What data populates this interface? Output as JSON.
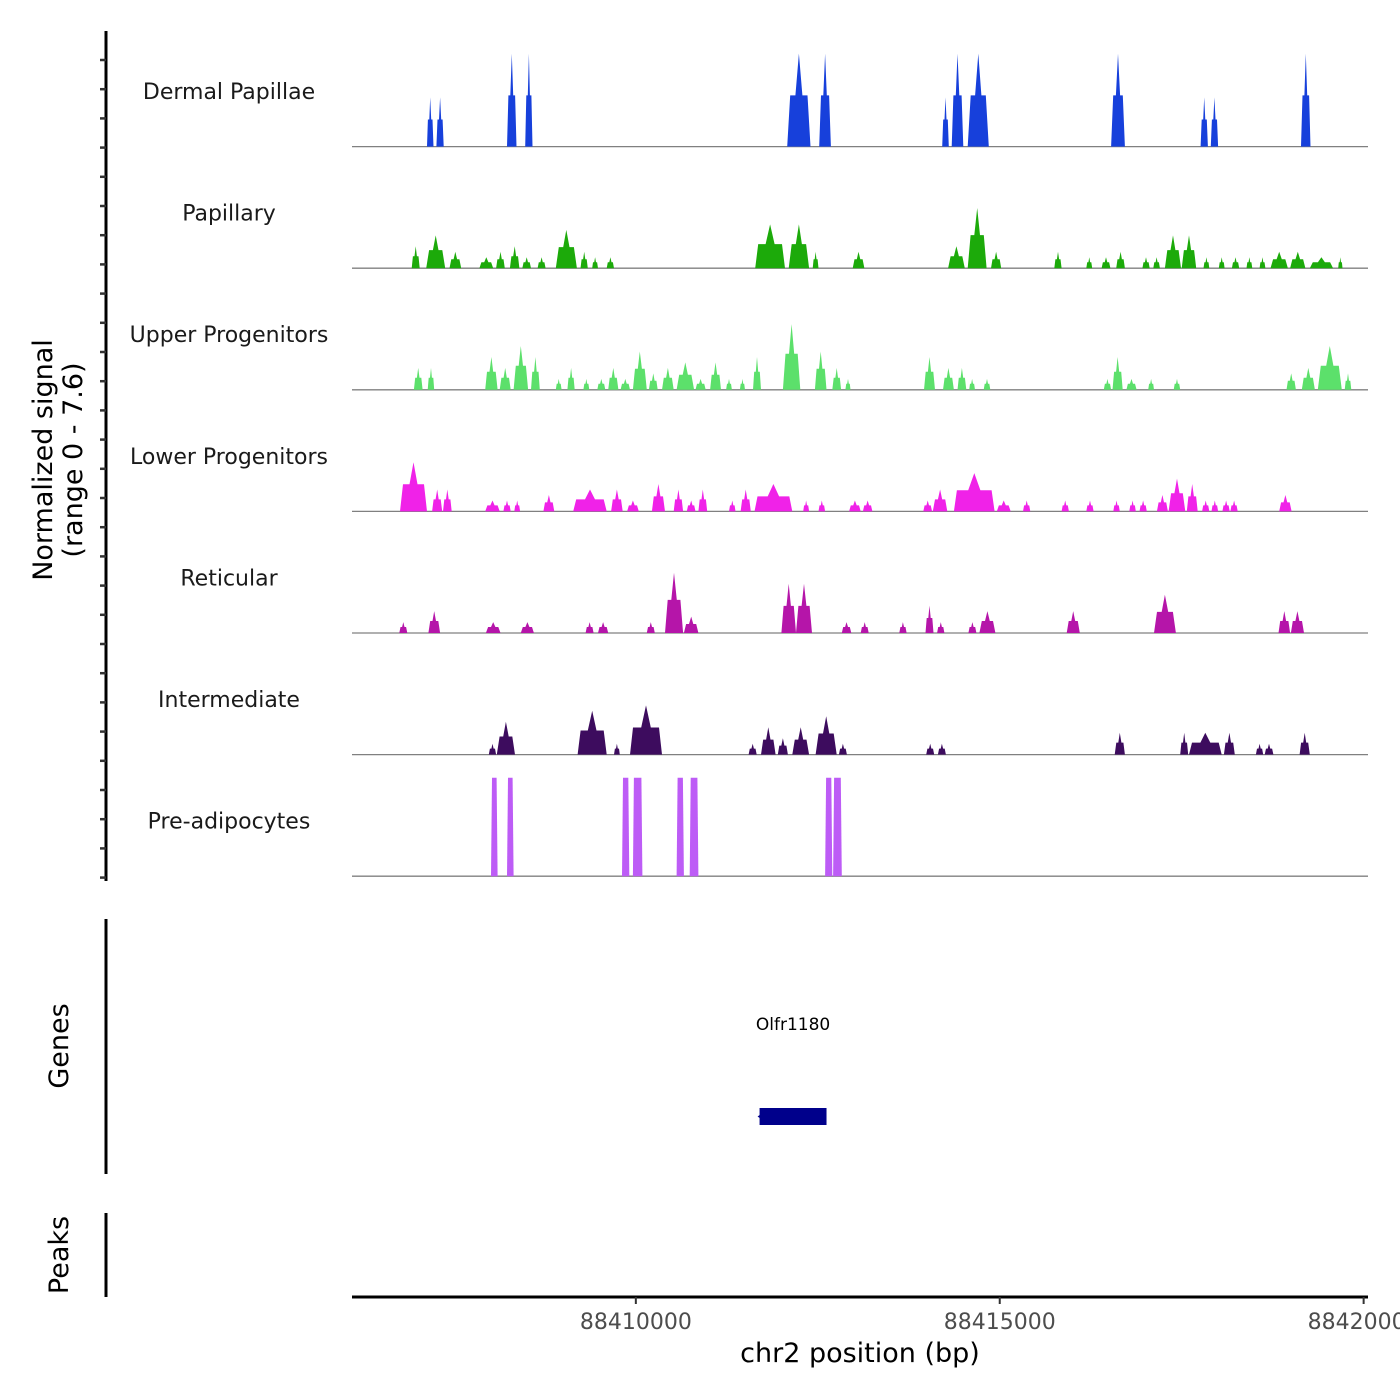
{
  "chart_data": {
    "type": "area",
    "title": "",
    "xlabel": "chr2 position (bp)",
    "ylabel": "Normalized signal\n(range 0 - 7.6)",
    "ylabel_lines": [
      "Normalized signal",
      "(range 0 - 7.6)"
    ],
    "ylim": [
      0,
      7.6
    ],
    "xlim": [
      88406100,
      88420060
    ],
    "x_ticks": [
      88410000,
      88415000,
      88420000
    ],
    "x_tick_labels": [
      "88410000",
      "88415000",
      "88420000"
    ],
    "grid": false,
    "legend": "none",
    "series": [
      {
        "name": "Dermal Papillae",
        "color": "#1740DB",
        "peaks": [
          [
            88407130,
            88407220,
            0.45
          ],
          [
            88407260,
            88407360,
            0.45
          ],
          [
            88408230,
            88408360,
            0.85
          ],
          [
            88408480,
            88408580,
            0.85
          ],
          [
            88412080,
            88412400,
            0.85
          ],
          [
            88412520,
            88412680,
            0.85
          ],
          [
            88414210,
            88414300,
            0.45
          ],
          [
            88414340,
            88414500,
            0.85
          ],
          [
            88414560,
            88414850,
            0.85
          ],
          [
            88416530,
            88416720,
            0.85
          ],
          [
            88417760,
            88417860,
            0.45
          ],
          [
            88417900,
            88418000,
            0.45
          ],
          [
            88419140,
            88419270,
            0.85
          ]
        ]
      },
      {
        "name": "Papillary",
        "color": "#1CAA0A",
        "peaks": [
          [
            88406920,
            88407030,
            0.2
          ],
          [
            88407120,
            88407380,
            0.3
          ],
          [
            88407440,
            88407600,
            0.15
          ],
          [
            88407850,
            88408040,
            0.1
          ],
          [
            88408080,
            88408200,
            0.15
          ],
          [
            88408270,
            88408400,
            0.2
          ],
          [
            88408440,
            88408560,
            0.1
          ],
          [
            88408650,
            88408760,
            0.1
          ],
          [
            88408900,
            88409190,
            0.35
          ],
          [
            88409240,
            88409340,
            0.15
          ],
          [
            88409400,
            88409480,
            0.1
          ],
          [
            88409600,
            88409700,
            0.1
          ],
          [
            88411640,
            88412050,
            0.4
          ],
          [
            88412100,
            88412380,
            0.4
          ],
          [
            88412430,
            88412510,
            0.15
          ],
          [
            88412980,
            88413140,
            0.15
          ],
          [
            88414290,
            88414520,
            0.2
          ],
          [
            88414560,
            88414820,
            0.55
          ],
          [
            88414880,
            88415020,
            0.15
          ],
          [
            88415750,
            88415850,
            0.15
          ],
          [
            88416190,
            88416270,
            0.1
          ],
          [
            88416400,
            88416520,
            0.1
          ],
          [
            88416600,
            88416720,
            0.15
          ],
          [
            88416960,
            88417060,
            0.1
          ],
          [
            88417110,
            88417200,
            0.1
          ],
          [
            88417270,
            88417490,
            0.3
          ],
          [
            88417500,
            88417700,
            0.3
          ],
          [
            88417800,
            88417880,
            0.1
          ],
          [
            88418010,
            88418090,
            0.1
          ],
          [
            88418190,
            88418290,
            0.1
          ],
          [
            88418390,
            88418470,
            0.1
          ],
          [
            88418570,
            88418650,
            0.1
          ],
          [
            88418720,
            88418960,
            0.15
          ],
          [
            88418990,
            88419200,
            0.15
          ],
          [
            88419260,
            88419580,
            0.1
          ],
          [
            88419650,
            88419710,
            0.1
          ]
        ]
      },
      {
        "name": "Upper Progenitors",
        "color": "#5CE06B",
        "peaks": [
          [
            88406950,
            88407070,
            0.2
          ],
          [
            88407140,
            88407230,
            0.2
          ],
          [
            88407930,
            88408100,
            0.3
          ],
          [
            88408130,
            88408280,
            0.2
          ],
          [
            88408320,
            88408520,
            0.4
          ],
          [
            88408560,
            88408680,
            0.3
          ],
          [
            88408900,
            88408980,
            0.1
          ],
          [
            88409060,
            88409160,
            0.2
          ],
          [
            88409280,
            88409360,
            0.1
          ],
          [
            88409470,
            88409580,
            0.1
          ],
          [
            88409620,
            88409760,
            0.2
          ],
          [
            88409790,
            88409920,
            0.1
          ],
          [
            88409960,
            88410150,
            0.35
          ],
          [
            88410180,
            88410300,
            0.15
          ],
          [
            88410360,
            88410520,
            0.2
          ],
          [
            88410560,
            88410800,
            0.25
          ],
          [
            88410820,
            88410960,
            0.1
          ],
          [
            88411020,
            88411170,
            0.25
          ],
          [
            88411240,
            88411320,
            0.1
          ],
          [
            88411430,
            88411500,
            0.1
          ],
          [
            88411610,
            88411720,
            0.3
          ],
          [
            88412020,
            88412260,
            0.6
          ],
          [
            88412460,
            88412620,
            0.35
          ],
          [
            88412700,
            88412820,
            0.2
          ],
          [
            88412880,
            88412950,
            0.1
          ],
          [
            88413960,
            88414110,
            0.3
          ],
          [
            88414220,
            88414370,
            0.2
          ],
          [
            88414420,
            88414540,
            0.2
          ],
          [
            88414580,
            88414660,
            0.1
          ],
          [
            88414780,
            88414870,
            0.1
          ],
          [
            88416430,
            88416530,
            0.1
          ],
          [
            88416550,
            88416690,
            0.3
          ],
          [
            88416740,
            88416880,
            0.1
          ],
          [
            88417040,
            88417120,
            0.1
          ],
          [
            88417390,
            88417480,
            0.1
          ],
          [
            88418940,
            88419070,
            0.15
          ],
          [
            88419150,
            88419330,
            0.2
          ],
          [
            88419370,
            88419700,
            0.4
          ],
          [
            88419740,
            88419830,
            0.15
          ]
        ]
      },
      {
        "name": "Lower Progenitors",
        "color": "#F022E8",
        "peaks": [
          [
            88406760,
            88407130,
            0.45
          ],
          [
            88407200,
            88407340,
            0.2
          ],
          [
            88407350,
            88407470,
            0.2
          ],
          [
            88407930,
            88408130,
            0.1
          ],
          [
            88408180,
            88408280,
            0.1
          ],
          [
            88408330,
            88408410,
            0.1
          ],
          [
            88408730,
            88408880,
            0.15
          ],
          [
            88409140,
            88409600,
            0.2
          ],
          [
            88409660,
            88409820,
            0.2
          ],
          [
            88409880,
            88410040,
            0.1
          ],
          [
            88410220,
            88410400,
            0.25
          ],
          [
            88410520,
            88410650,
            0.2
          ],
          [
            88410700,
            88410820,
            0.1
          ],
          [
            88410860,
            88410980,
            0.2
          ],
          [
            88411280,
            88411370,
            0.1
          ],
          [
            88411440,
            88411580,
            0.2
          ],
          [
            88411630,
            88412150,
            0.25
          ],
          [
            88412300,
            88412380,
            0.1
          ],
          [
            88412510,
            88412600,
            0.1
          ],
          [
            88412930,
            88413090,
            0.1
          ],
          [
            88413120,
            88413250,
            0.1
          ],
          [
            88413950,
            88414070,
            0.1
          ],
          [
            88414080,
            88414280,
            0.2
          ],
          [
            88414370,
            88414930,
            0.35
          ],
          [
            88414960,
            88415150,
            0.1
          ],
          [
            88415320,
            88415420,
            0.1
          ],
          [
            88415850,
            88415950,
            0.1
          ],
          [
            88416190,
            88416290,
            0.1
          ],
          [
            88416560,
            88416650,
            0.1
          ],
          [
            88416780,
            88416870,
            0.1
          ],
          [
            88416920,
            88417020,
            0.1
          ],
          [
            88417160,
            88417310,
            0.15
          ],
          [
            88417320,
            88417550,
            0.3
          ],
          [
            88417570,
            88417720,
            0.25
          ],
          [
            88417780,
            88417880,
            0.1
          ],
          [
            88417910,
            88418000,
            0.1
          ],
          [
            88418060,
            88418160,
            0.1
          ],
          [
            88418170,
            88418270,
            0.1
          ],
          [
            88418840,
            88419010,
            0.15
          ]
        ]
      },
      {
        "name": "Reticular",
        "color": "#B515A9",
        "peaks": [
          [
            88406750,
            88406860,
            0.1
          ],
          [
            88407150,
            88407310,
            0.2
          ],
          [
            88407940,
            88408140,
            0.1
          ],
          [
            88408420,
            88408600,
            0.1
          ],
          [
            88409310,
            88409420,
            0.1
          ],
          [
            88409480,
            88409620,
            0.1
          ],
          [
            88410150,
            88410260,
            0.1
          ],
          [
            88410400,
            88410650,
            0.55
          ],
          [
            88410660,
            88410860,
            0.15
          ],
          [
            88412000,
            88412200,
            0.45
          ],
          [
            88412200,
            88412420,
            0.45
          ],
          [
            88412830,
            88412960,
            0.1
          ],
          [
            88413090,
            88413200,
            0.1
          ],
          [
            88413620,
            88413720,
            0.1
          ],
          [
            88413980,
            88414090,
            0.25
          ],
          [
            88414140,
            88414240,
            0.1
          ],
          [
            88414570,
            88414680,
            0.1
          ],
          [
            88414720,
            88414940,
            0.2
          ],
          [
            88415920,
            88416100,
            0.2
          ],
          [
            88417120,
            88417420,
            0.35
          ],
          [
            88418830,
            88418990,
            0.2
          ],
          [
            88419000,
            88419180,
            0.2
          ]
        ]
      },
      {
        "name": "Intermediate",
        "color": "#3D0C5E",
        "peaks": [
          [
            88407980,
            88408080,
            0.1
          ],
          [
            88408090,
            88408340,
            0.3
          ],
          [
            88409200,
            88409600,
            0.4
          ],
          [
            88409700,
            88409780,
            0.1
          ],
          [
            88409920,
            88410360,
            0.45
          ],
          [
            88411550,
            88411660,
            0.1
          ],
          [
            88411720,
            88411920,
            0.25
          ],
          [
            88411950,
            88412090,
            0.15
          ],
          [
            88412150,
            88412380,
            0.25
          ],
          [
            88412470,
            88412760,
            0.35
          ],
          [
            88412790,
            88412900,
            0.1
          ],
          [
            88413990,
            88414100,
            0.1
          ],
          [
            88414150,
            88414260,
            0.1
          ],
          [
            88416580,
            88416720,
            0.2
          ],
          [
            88417480,
            88417590,
            0.2
          ],
          [
            88417600,
            88418050,
            0.2
          ],
          [
            88418080,
            88418230,
            0.2
          ],
          [
            88418520,
            88418620,
            0.1
          ],
          [
            88418640,
            88418760,
            0.1
          ],
          [
            88419120,
            88419260,
            0.2
          ]
        ]
      },
      {
        "name": "Pre-adipocytes",
        "color": "#BD5CF6",
        "peaks": [
          [
            88408010,
            88408100,
            0.9
          ],
          [
            88408230,
            88408320,
            0.9
          ],
          [
            88409810,
            88409910,
            0.9
          ],
          [
            88409960,
            88410090,
            0.9
          ],
          [
            88410560,
            88410660,
            0.9
          ],
          [
            88410740,
            88410860,
            0.9
          ],
          [
            88412600,
            88412700,
            0.9
          ],
          [
            88412710,
            88412830,
            0.9
          ]
        ]
      }
    ],
    "genes": {
      "label": "Genes",
      "items": [
        {
          "name": "Olfr1180",
          "start": 88411700,
          "end": 88412620,
          "strand": "-",
          "color": "#00008B"
        }
      ]
    },
    "peaks_track": {
      "label": "Peaks",
      "items": []
    }
  }
}
